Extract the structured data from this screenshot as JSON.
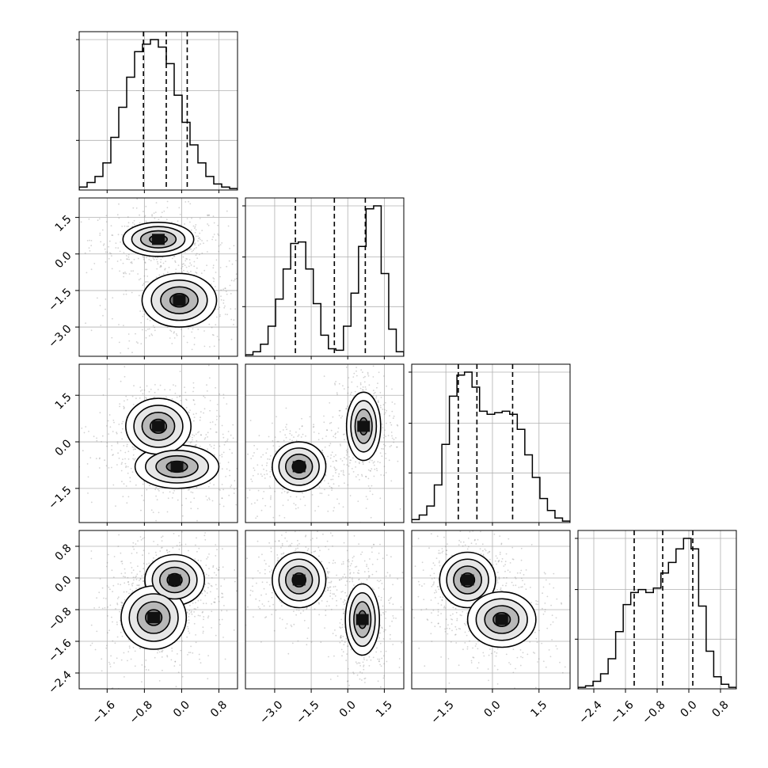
{
  "chart_data": {
    "type": "corner",
    "variables": 4,
    "ranges": [
      [
        -2.2,
        1.2
      ],
      [
        -4.2,
        2.3
      ],
      [
        -2.6,
        2.5
      ],
      [
        -2.8,
        1.2
      ]
    ],
    "ticks": [
      {
        "values": [
          -1.6,
          -0.8,
          0.0,
          0.8
        ],
        "labels": [
          "−1.6",
          "−0.8",
          "0.0",
          "0.8"
        ]
      },
      {
        "values": [
          -3.0,
          -1.5,
          0.0,
          1.5
        ],
        "labels": [
          "−3.0",
          "−1.5",
          "0.0",
          "1.5"
        ]
      },
      {
        "values": [
          -1.5,
          0.0,
          1.5
        ],
        "labels": [
          "−1.5",
          "0.0",
          "1.5"
        ]
      },
      {
        "values": [
          -2.4,
          -1.6,
          -0.8,
          0.0,
          0.8
        ],
        "labels": [
          "−2.4",
          "−1.6",
          "−0.8",
          "0.0",
          "0.8"
        ]
      }
    ],
    "quantiles": [
      [
        -0.82,
        -0.33,
        0.12
      ],
      [
        -2.15,
        -0.55,
        0.72
      ],
      [
        -1.1,
        -0.5,
        0.65
      ],
      [
        -1.38,
        -0.66,
        0.1
      ]
    ],
    "histograms": [
      {
        "values": [
          0.02,
          0.05,
          0.09,
          0.18,
          0.35,
          0.55,
          0.75,
          0.92,
          0.97,
          1.0,
          0.95,
          0.84,
          0.63,
          0.45,
          0.3,
          0.18,
          0.09,
          0.04,
          0.02,
          0.01
        ]
      },
      {
        "values": [
          0.01,
          0.03,
          0.08,
          0.2,
          0.38,
          0.58,
          0.75,
          0.76,
          0.58,
          0.35,
          0.14,
          0.05,
          0.04,
          0.2,
          0.42,
          0.73,
          0.98,
          1.0,
          0.55,
          0.18,
          0.03
        ]
      },
      {
        "values": [
          0.02,
          0.05,
          0.11,
          0.25,
          0.52,
          0.84,
          0.98,
          1.0,
          0.9,
          0.74,
          0.72,
          0.73,
          0.74,
          0.72,
          0.62,
          0.45,
          0.3,
          0.16,
          0.08,
          0.03,
          0.01
        ]
      },
      {
        "values": [
          0.01,
          0.02,
          0.05,
          0.1,
          0.2,
          0.38,
          0.56,
          0.64,
          0.66,
          0.64,
          0.67,
          0.77,
          0.84,
          0.93,
          1.0,
          0.93,
          0.55,
          0.25,
          0.08,
          0.03,
          0.01
        ]
      }
    ],
    "blobs": {
      "1_0": [
        {
          "cx": -0.5,
          "cy": 0.6,
          "sx": 0.38,
          "sy": 0.35,
          "w": 1.0
        },
        {
          "cx": -0.05,
          "cy": -1.9,
          "sx": 0.4,
          "sy": 0.55,
          "w": 1.0
        }
      ],
      "2_0": [
        {
          "cx": -0.1,
          "cy": -0.8,
          "sx": 0.45,
          "sy": 0.35,
          "w": 1.0
        },
        {
          "cx": -0.5,
          "cy": 0.5,
          "sx": 0.35,
          "sy": 0.45,
          "w": 0.9
        }
      ],
      "2_1": [
        {
          "cx": -2.0,
          "cy": -0.8,
          "sx": 0.55,
          "sy": 0.4,
          "w": 1.0
        },
        {
          "cx": 0.65,
          "cy": 0.5,
          "sx": 0.35,
          "sy": 0.55,
          "w": 1.0
        }
      ],
      "3_0": [
        {
          "cx": -0.15,
          "cy": -0.05,
          "sx": 0.32,
          "sy": 0.32,
          "w": 1.0
        },
        {
          "cx": -0.6,
          "cy": -1.0,
          "sx": 0.35,
          "sy": 0.4,
          "w": 0.9
        }
      ],
      "3_1": [
        {
          "cx": -2.0,
          "cy": -0.05,
          "sx": 0.55,
          "sy": 0.35,
          "w": 1.0
        },
        {
          "cx": 0.6,
          "cy": -1.05,
          "sx": 0.35,
          "sy": 0.45,
          "w": 1.0
        }
      ],
      "3_2": [
        {
          "cx": -0.8,
          "cy": -0.05,
          "sx": 0.45,
          "sy": 0.35,
          "w": 1.0
        },
        {
          "cx": 0.3,
          "cy": -1.05,
          "sx": 0.55,
          "sy": 0.35,
          "w": 0.9
        }
      ]
    }
  }
}
